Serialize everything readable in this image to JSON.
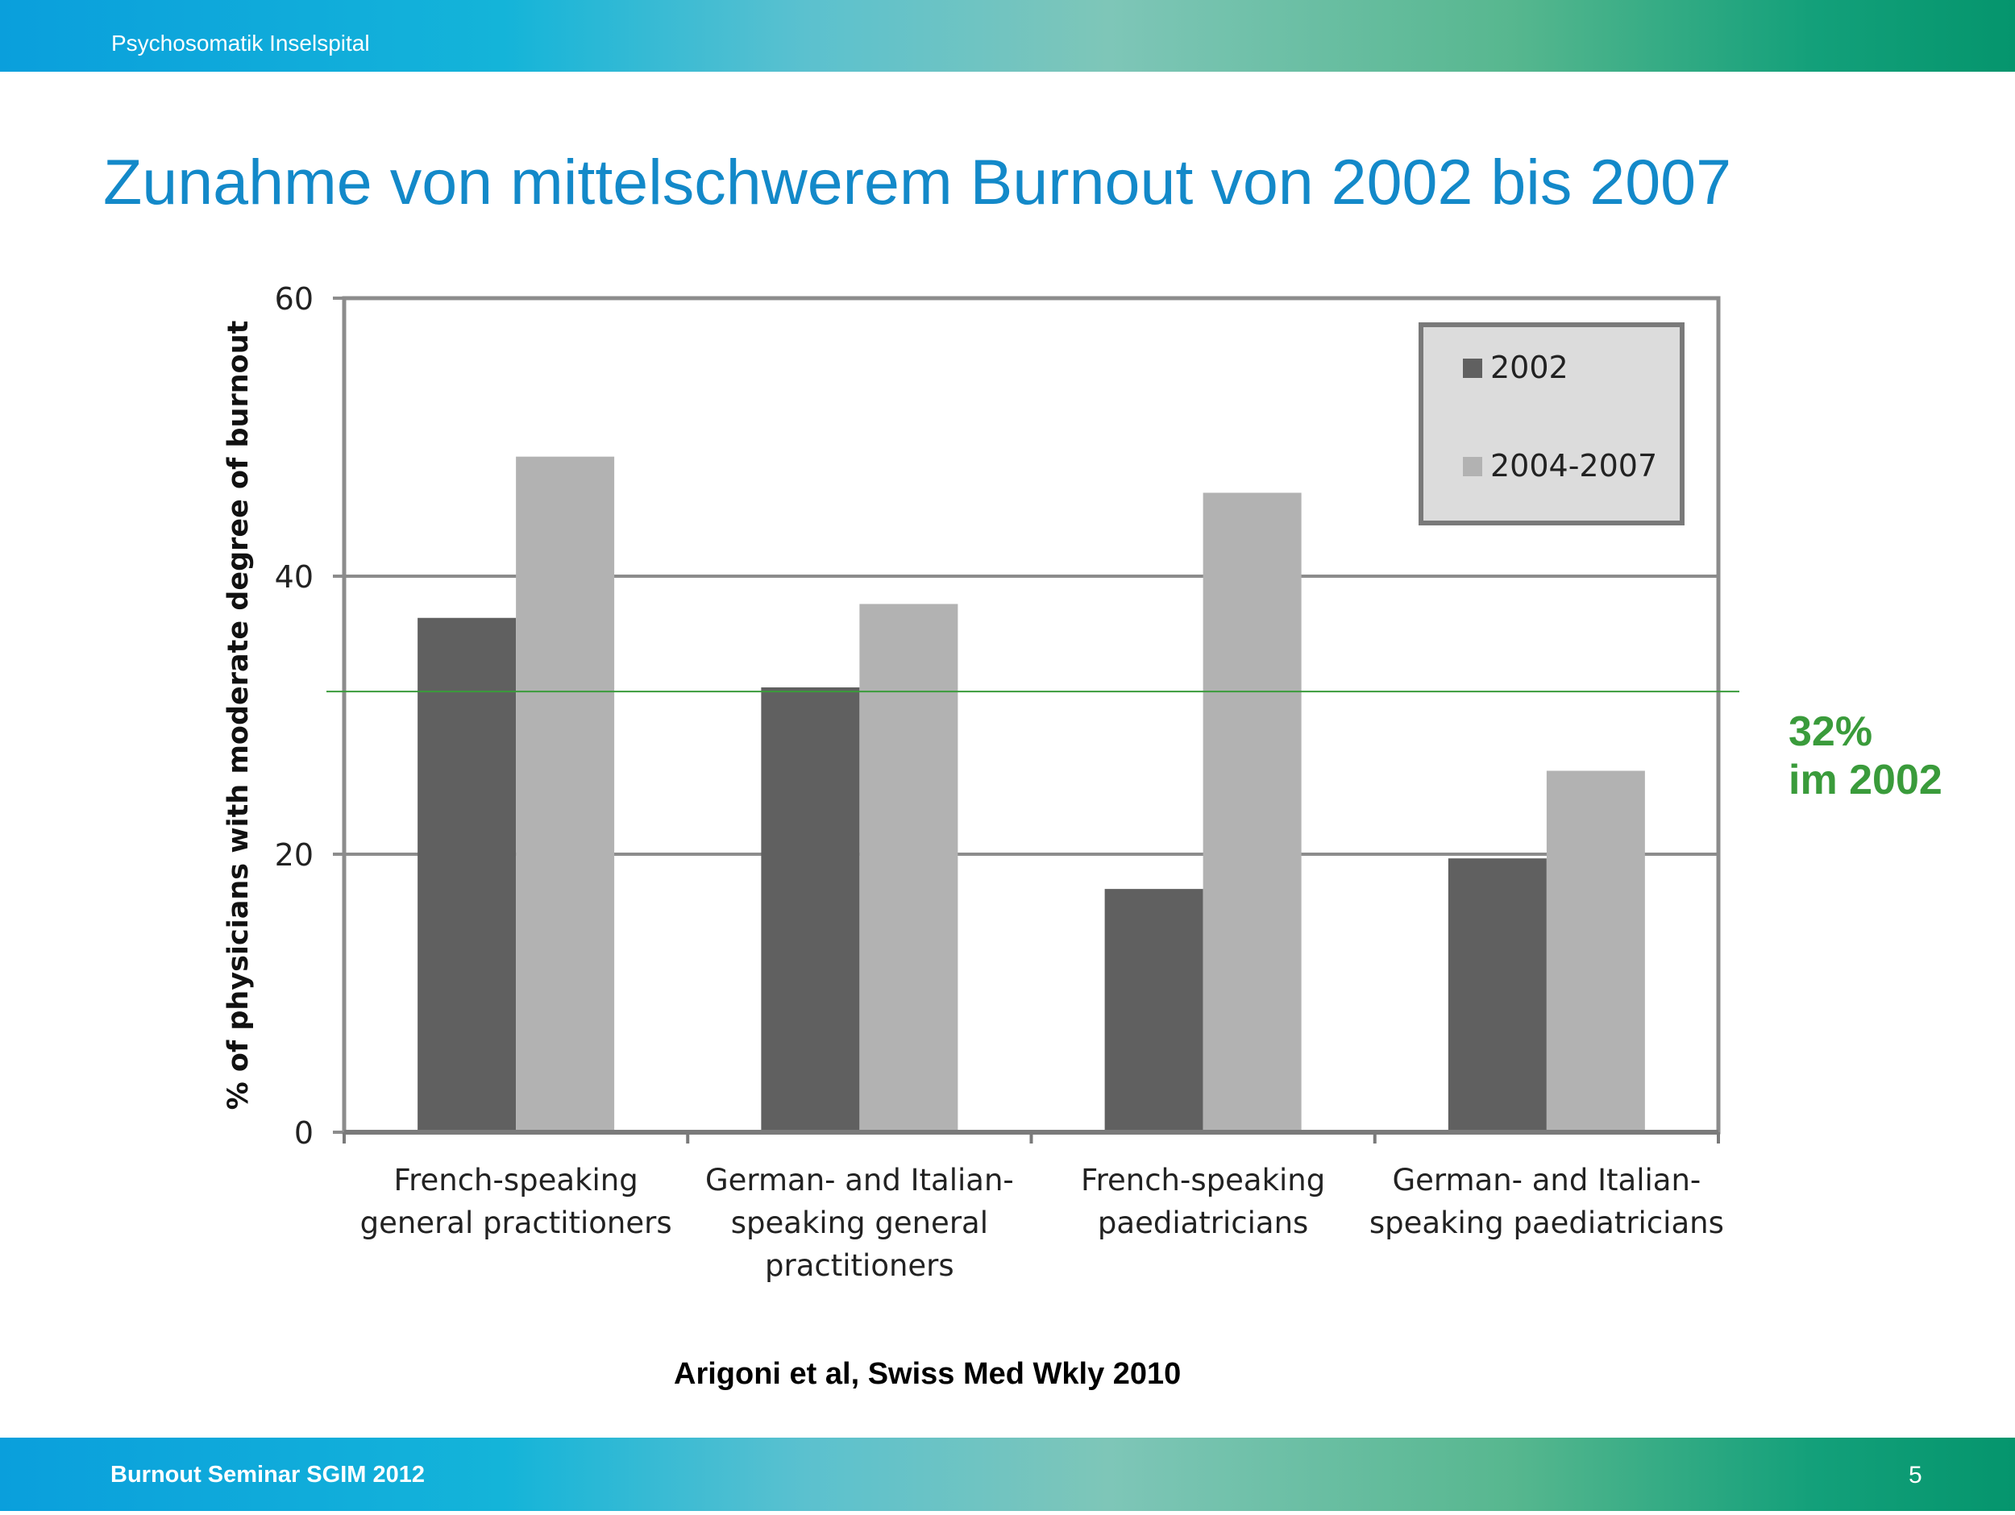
{
  "header": {
    "org": "Psychosomatik Inselspital"
  },
  "slide": {
    "title": "Zunahme von mittelschwerem Burnout von 2002 bis 2007"
  },
  "chart_data": {
    "type": "bar",
    "categories": [
      [
        "French-speaking",
        "general practitioners"
      ],
      [
        "German- and Italian-",
        "speaking general",
        "practitioners"
      ],
      [
        "French-speaking",
        "paediatricians"
      ],
      [
        "German- and Italian-",
        "speaking paediatricians"
      ]
    ],
    "series": [
      {
        "name": "2002",
        "values": [
          37,
          32,
          17.5,
          19.7
        ],
        "color": "#606060"
      },
      {
        "name": "2004-2007",
        "values": [
          48.6,
          38,
          46,
          26
        ],
        "color": "#b2b2b2"
      }
    ],
    "ylabel": "% of physicians with moderate degree of burnout",
    "ylim": [
      0,
      60
    ],
    "yticks": [
      "0",
      "20",
      "40",
      "60"
    ],
    "grid": true,
    "legend": "top-right",
    "reference_line": {
      "value": 31.7,
      "color": "#3a9b3b"
    }
  },
  "annotation": {
    "line1": "32%",
    "line2": "im 2002"
  },
  "citation": "Arigoni et al, Swiss Med Wkly 2010",
  "footer": {
    "left": "Burnout Seminar SGIM 2012",
    "page": "5"
  }
}
